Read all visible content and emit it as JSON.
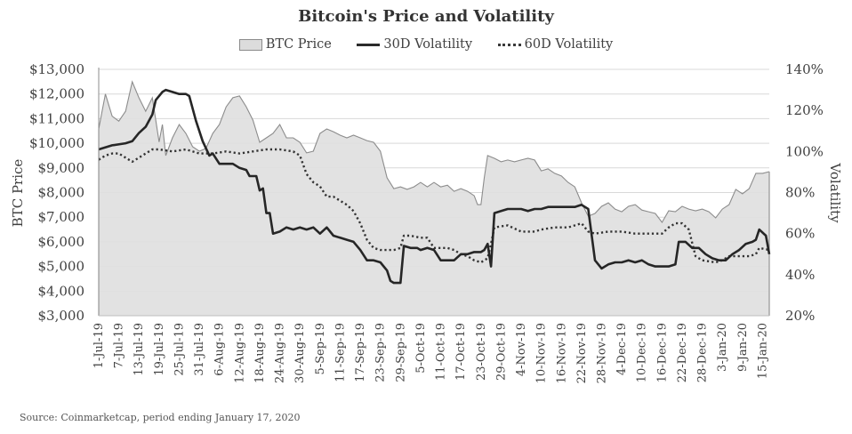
{
  "chart_data": {
    "type": "line",
    "title": "Bitcoin's Price and Volatility",
    "legend": {
      "placement": "top",
      "entries": [
        {
          "label": "BTC Price",
          "style": "area"
        },
        {
          "label": "30D Volatility",
          "style": "solid-line"
        },
        {
          "label": "60D Volatility",
          "style": "dotted-line"
        }
      ]
    },
    "ylabel_left": "BTC Price",
    "ylabel_right": "Volatility",
    "ylim_left": [
      3000,
      13000
    ],
    "ylim_right": [
      20,
      140
    ],
    "left_ticks": [
      "$13,000",
      "$12,000",
      "$11,000",
      "$10,000",
      "$9,000",
      "$8,000",
      "$7,000",
      "$6,000",
      "$5,000",
      "$4,000",
      "$3,000"
    ],
    "left_tick_values": [
      13000,
      12000,
      11000,
      10000,
      9000,
      8000,
      7000,
      6000,
      5000,
      4000,
      3000
    ],
    "right_ticks": [
      "140%",
      "120%",
      "100%",
      "80%",
      "60%",
      "40%",
      "20%"
    ],
    "right_tick_values": [
      140,
      120,
      100,
      80,
      60,
      40,
      20
    ],
    "grid": true,
    "x_range_days": [
      0,
      200
    ],
    "x_ticks": [
      "1-Jul-19",
      "7-Jul-19",
      "13-Jul-19",
      "19-Jul-19",
      "25-Jul-19",
      "31-Jul-19",
      "6-Aug-19",
      "12-Aug-19",
      "18-Aug-19",
      "24-Aug-19",
      "30-Aug-19",
      "5-Sep-19",
      "11-Sep-19",
      "17-Sep-19",
      "23-Sep-19",
      "29-Sep-19",
      "5-Oct-19",
      "11-Oct-19",
      "17-Oct-19",
      "23-Oct-19",
      "29-Oct-19",
      "4-Nov-19",
      "10-Nov-19",
      "16-Nov-19",
      "22-Nov-19",
      "28-Nov-19",
      "4-Dec-19",
      "10-Dec-19",
      "16-Dec-19",
      "22-Dec-19",
      "28-Dec-19",
      "3-Jan-20",
      "9-Jan-20",
      "15-Jan-20"
    ],
    "x_tick_days": [
      0,
      6,
      12,
      18,
      24,
      30,
      36,
      42,
      48,
      54,
      60,
      66,
      72,
      78,
      84,
      90,
      96,
      102,
      108,
      114,
      120,
      126,
      132,
      138,
      144,
      150,
      156,
      162,
      168,
      174,
      180,
      186,
      192,
      198
    ],
    "series": [
      {
        "name": "BTC Price",
        "unit": "USD",
        "axis": "left",
        "days": [
          0,
          2,
          4,
          6,
          8,
          10,
          12,
          14,
          16,
          18,
          19,
          20,
          22,
          24,
          26,
          28,
          30,
          32,
          34,
          36,
          38,
          40,
          42,
          44,
          46,
          48,
          50,
          52,
          54,
          56,
          58,
          60,
          62,
          64,
          66,
          68,
          70,
          72,
          74,
          76,
          78,
          80,
          82,
          84,
          86,
          88,
          90,
          92,
          94,
          96,
          98,
          100,
          102,
          104,
          106,
          108,
          110,
          112,
          113,
          114,
          115,
          116,
          118,
          120,
          122,
          124,
          126,
          128,
          130,
          132,
          134,
          136,
          138,
          140,
          142,
          144,
          146,
          148,
          150,
          152,
          154,
          156,
          158,
          160,
          162,
          164,
          166,
          168,
          170,
          172,
          174,
          176,
          178,
          180,
          182,
          184,
          186,
          188,
          190,
          192,
          194,
          196,
          198,
          200
        ],
        "values": [
          10580,
          12000,
          11100,
          10900,
          11300,
          12500,
          11850,
          11300,
          11850,
          10050,
          10760,
          9500,
          10220,
          10760,
          10400,
          9860,
          9680,
          9790,
          10400,
          10760,
          11480,
          11850,
          11920,
          11480,
          10940,
          10040,
          10220,
          10400,
          10760,
          10220,
          10220,
          10040,
          9610,
          9680,
          10400,
          10580,
          10470,
          10330,
          10220,
          10330,
          10220,
          10110,
          10040,
          9680,
          8600,
          8160,
          8230,
          8130,
          8230,
          8410,
          8230,
          8410,
          8230,
          8300,
          8050,
          8160,
          8050,
          7870,
          7510,
          7510,
          8600,
          9500,
          9390,
          9250,
          9320,
          9250,
          9320,
          9390,
          9320,
          8880,
          8960,
          8780,
          8670,
          8410,
          8230,
          7580,
          7040,
          7150,
          7440,
          7580,
          7330,
          7220,
          7440,
          7510,
          7290,
          7220,
          7150,
          6790,
          7260,
          7220,
          7440,
          7330,
          7260,
          7330,
          7220,
          6970,
          7330,
          7510,
          8130,
          7950,
          8160,
          8780,
          8780,
          8850
        ]
      },
      {
        "name": "30D Volatility",
        "unit": "%",
        "axis": "right",
        "days": [
          0,
          4,
          8,
          10,
          12,
          14,
          16,
          17,
          19,
          20,
          22,
          24,
          26,
          27,
          29,
          31,
          33,
          34,
          36,
          38,
          40,
          42,
          44,
          45,
          47,
          48,
          49,
          50,
          51,
          52,
          54,
          56,
          58,
          60,
          62,
          64,
          66,
          68,
          70,
          72,
          74,
          76,
          78,
          80,
          82,
          84,
          86,
          87,
          88,
          90,
          91,
          93,
          95,
          96,
          98,
          100,
          102,
          104,
          106,
          108,
          110,
          112,
          114,
          115,
          116,
          117,
          118,
          120,
          122,
          124,
          126,
          128,
          130,
          132,
          134,
          136,
          138,
          140,
          142,
          144,
          146,
          148,
          150,
          152,
          154,
          156,
          158,
          160,
          162,
          164,
          166,
          168,
          170,
          172,
          173,
          175,
          177,
          179,
          181,
          183,
          185,
          187,
          189,
          191,
          193,
          195,
          196,
          197,
          199,
          200
        ],
        "values": [
          101,
          103,
          104,
          105,
          109,
          112,
          118,
          125,
          129,
          130,
          129,
          128,
          128,
          127,
          115,
          105,
          98,
          99,
          94,
          94,
          94,
          92,
          91,
          88,
          88,
          81,
          82,
          70,
          70,
          60,
          61,
          63,
          62,
          63,
          62,
          63,
          60,
          63,
          59,
          58,
          57,
          56,
          52,
          47,
          47,
          46,
          42,
          37,
          36,
          36,
          54,
          53,
          53,
          52,
          53,
          52,
          47,
          47,
          47,
          50,
          50,
          51,
          51,
          52,
          55,
          44,
          70,
          71,
          72,
          72,
          72,
          71,
          72,
          72,
          73,
          73,
          73,
          73,
          73,
          74,
          72,
          47,
          43,
          45,
          46,
          46,
          47,
          46,
          47,
          45,
          44,
          44,
          44,
          45,
          56,
          56,
          53,
          53,
          50,
          48,
          47,
          47,
          50,
          52,
          55,
          56,
          57,
          62,
          59,
          50
        ]
      },
      {
        "name": "60D Volatility",
        "unit": "%",
        "axis": "right",
        "days": [
          0,
          2,
          4,
          6,
          8,
          10,
          12,
          14,
          16,
          18,
          22,
          26,
          30,
          34,
          38,
          42,
          46,
          50,
          54,
          58,
          60,
          62,
          64,
          66,
          68,
          70,
          72,
          74,
          76,
          78,
          80,
          82,
          84,
          86,
          88,
          90,
          91,
          93,
          96,
          98,
          100,
          104,
          106,
          108,
          110,
          112,
          114,
          116,
          117,
          118,
          122,
          126,
          130,
          132,
          136,
          140,
          144,
          146,
          148,
          152,
          156,
          160,
          164,
          168,
          170,
          172,
          174,
          176,
          178,
          180,
          184,
          186,
          188,
          190,
          194,
          196,
          197,
          200
        ],
        "values": [
          96,
          98,
          99,
          99,
          97,
          95,
          97,
          99,
          101,
          101,
          100,
          101,
          99,
          99,
          100,
          99,
          100,
          101,
          101,
          100,
          98,
          89,
          85,
          83,
          78,
          78,
          76,
          74,
          71,
          65,
          57,
          53,
          52,
          52,
          52,
          53,
          59,
          59,
          58,
          58,
          53,
          53,
          52,
          50,
          49,
          47,
          46,
          48,
          55,
          63,
          64,
          61,
          61,
          62,
          63,
          63,
          65,
          61,
          60,
          61,
          61,
          60,
          60,
          60,
          63,
          65,
          65,
          62,
          49,
          47,
          46,
          47,
          49,
          49,
          49,
          50,
          53,
          52
        ]
      }
    ]
  },
  "footer": {
    "source": "Source: Coinmarketcap, period ending January 17, 2020"
  }
}
